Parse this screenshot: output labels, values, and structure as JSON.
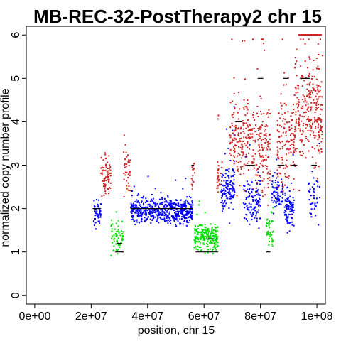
{
  "chart_data": {
    "type": "scatter",
    "title": "MB-REC-32-PostTherapy2 chr 15",
    "xlabel": "position, chr 15",
    "ylabel": "normalized copy number profile",
    "xlim": [
      -3000000,
      103000000
    ],
    "ylim": [
      -0.2,
      6.2
    ],
    "x_ticks": [
      0,
      20000000,
      40000000,
      60000000,
      80000000,
      100000000
    ],
    "x_tick_labels": [
      "0e+00",
      "2e+07",
      "4e+07",
      "6e+07",
      "8e+07",
      "1e+08"
    ],
    "y_ticks": [
      0,
      1,
      2,
      3,
      4,
      5,
      6
    ],
    "y_tick_labels": [
      "0",
      "1",
      "2",
      "3",
      "4",
      "5",
      "6"
    ],
    "grid": false,
    "legend": "none",
    "colors": {
      "blue": "#0000ff",
      "red": "#cc2222",
      "green": "#00dd00",
      "segment": "#000000"
    },
    "point_clusters": [
      {
        "color": "blue",
        "x_start": 20500000,
        "x_end": 23500000,
        "center": 1.9,
        "spread": 0.28,
        "count": 45
      },
      {
        "color": "red",
        "x_start": 23500000,
        "x_end": 27000000,
        "center": 2.75,
        "spread": 0.45,
        "count": 70
      },
      {
        "color": "green",
        "x_start": 27000000,
        "x_end": 31500000,
        "center": 1.35,
        "spread": 0.35,
        "count": 60
      },
      {
        "color": "red",
        "x_start": 31500000,
        "x_end": 34000000,
        "center": 2.9,
        "spread": 0.55,
        "count": 40
      },
      {
        "color": "blue",
        "x_start": 34000000,
        "x_end": 56000000,
        "center": 1.95,
        "spread": 0.3,
        "count": 520
      },
      {
        "color": "red",
        "x_start": 55500000,
        "x_end": 56800000,
        "center": 2.7,
        "spread": 0.45,
        "count": 18
      },
      {
        "color": "green",
        "x_start": 56500000,
        "x_end": 65000000,
        "center": 1.35,
        "spread": 0.3,
        "count": 230
      },
      {
        "color": "red",
        "x_start": 64500000,
        "x_end": 66500000,
        "center": 2.8,
        "spread": 0.45,
        "count": 30
      },
      {
        "color": "blue",
        "x_start": 66000000,
        "x_end": 71000000,
        "center": 2.5,
        "spread": 0.55,
        "count": 120
      },
      {
        "color": "red",
        "x_start": 69000000,
        "x_end": 76500000,
        "center": 3.6,
        "spread": 0.9,
        "count": 160
      },
      {
        "color": "blue",
        "x_start": 74000000,
        "x_end": 80000000,
        "center": 2.2,
        "spread": 0.5,
        "count": 120
      },
      {
        "color": "red",
        "x_start": 77000000,
        "x_end": 83500000,
        "center": 3.4,
        "spread": 1.0,
        "count": 150
      },
      {
        "color": "green",
        "x_start": 82000000,
        "x_end": 84500000,
        "center": 1.5,
        "spread": 0.45,
        "count": 45
      },
      {
        "color": "blue",
        "x_start": 84000000,
        "x_end": 88000000,
        "center": 2.4,
        "spread": 0.45,
        "count": 70
      },
      {
        "color": "red",
        "x_start": 86000000,
        "x_end": 92000000,
        "center": 3.5,
        "spread": 1.1,
        "count": 130
      },
      {
        "color": "blue",
        "x_start": 88500000,
        "x_end": 92000000,
        "center": 2.0,
        "spread": 0.45,
        "count": 90
      },
      {
        "color": "red",
        "x_start": 92000000,
        "x_end": 102000000,
        "center": 4.2,
        "spread": 1.15,
        "count": 280
      },
      {
        "color": "blue",
        "x_start": 97000000,
        "x_end": 101000000,
        "center": 2.3,
        "spread": 0.5,
        "count": 40
      }
    ],
    "saturated_points": {
      "color": "red",
      "y": 6.0,
      "x_start": 93500000,
      "x_end": 101500000,
      "count": 60
    },
    "segments": [
      {
        "x_start": 20500000,
        "x_end": 23500000,
        "y": 2.0
      },
      {
        "x_start": 28500000,
        "x_end": 31500000,
        "y": 1.0
      },
      {
        "x_start": 29000000,
        "x_end": 31000000,
        "y": 1.2
      },
      {
        "x_start": 34000000,
        "x_end": 56000000,
        "y": 2.0
      },
      {
        "x_start": 57000000,
        "x_end": 65000000,
        "y": 1.0
      },
      {
        "x_start": 60000000,
        "x_end": 65000000,
        "y": 1.3
      },
      {
        "x_start": 55500000,
        "x_end": 56500000,
        "y": 3.0
      },
      {
        "x_start": 71000000,
        "x_end": 73500000,
        "y": 4.0
      },
      {
        "x_start": 79000000,
        "x_end": 81000000,
        "y": 5.0
      },
      {
        "x_start": 75000000,
        "x_end": 78000000,
        "y": 3.0
      },
      {
        "x_start": 82000000,
        "x_end": 83500000,
        "y": 1.0
      },
      {
        "x_start": 86000000,
        "x_end": 88500000,
        "y": 3.0
      },
      {
        "x_start": 88000000,
        "x_end": 90000000,
        "y": 5.0
      },
      {
        "x_start": 91000000,
        "x_end": 93000000,
        "y": 3.0
      },
      {
        "x_start": 94000000,
        "x_end": 97500000,
        "y": 5.0
      },
      {
        "x_start": 98000000,
        "x_end": 100000000,
        "y": 3.0
      }
    ]
  }
}
